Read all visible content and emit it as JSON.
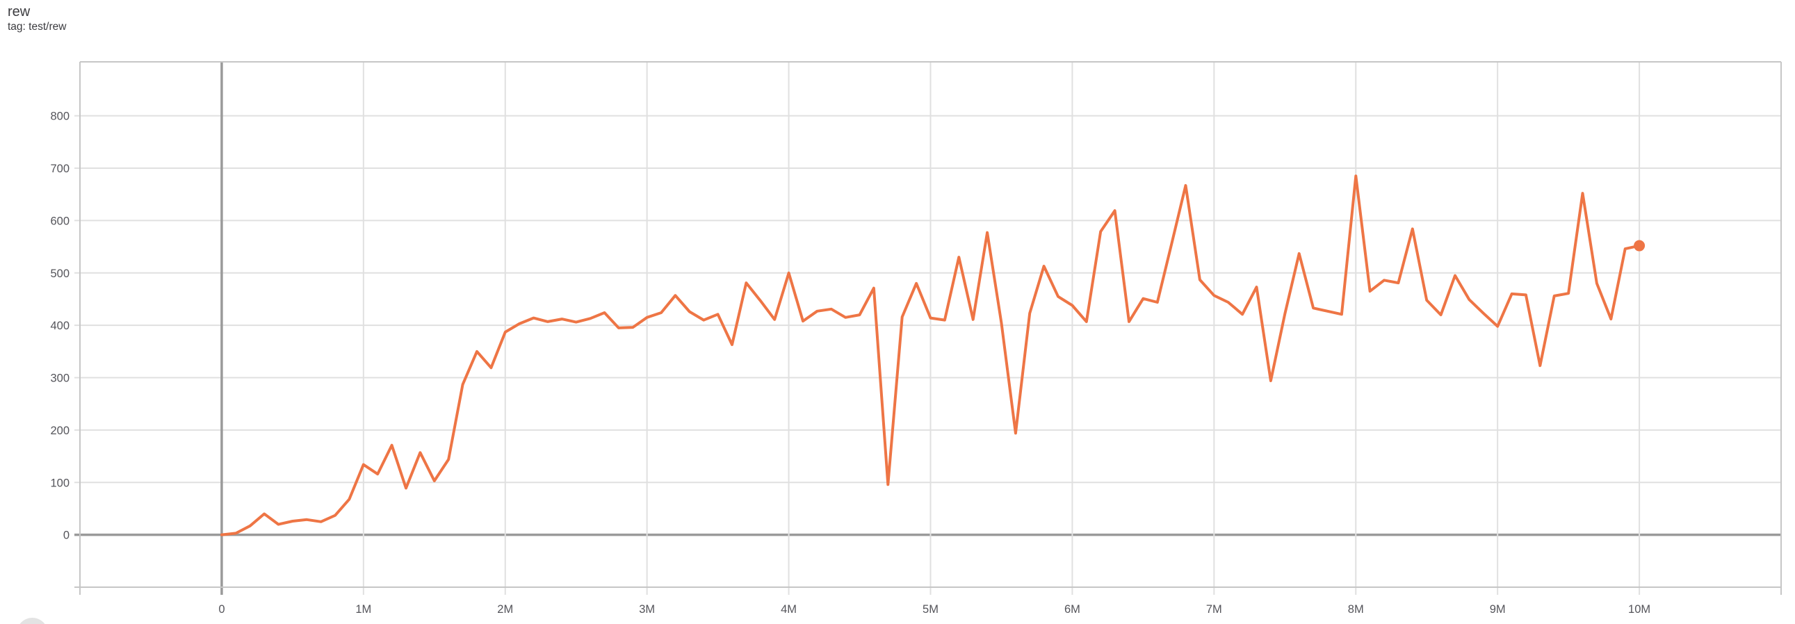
{
  "chart_card": {
    "title": "rew",
    "subtitle": "tag: test/rew"
  },
  "colors": {
    "series": "#ee7545",
    "gridline": "#e0e0e0",
    "plot_border": "#c6c6c6",
    "zero_axis": "#9a9a9a",
    "tick_label": "#54545a",
    "title_text": "#3b3b3f",
    "corner_circle": "#e3e3e3",
    "background": "#ffffff"
  },
  "chart_data": {
    "type": "line",
    "title": "rew",
    "subtitle": "tag: test/rew",
    "xlabel": "",
    "ylabel": "",
    "grid": true,
    "legend_position": "none",
    "x_unit": "steps",
    "x_range": [
      -1000000,
      11000000
    ],
    "y_range": [
      -100,
      903
    ],
    "x_ticks": [
      {
        "value": 0,
        "label": "0"
      },
      {
        "value": 1000000,
        "label": "1M"
      },
      {
        "value": 2000000,
        "label": "2M"
      },
      {
        "value": 3000000,
        "label": "3M"
      },
      {
        "value": 4000000,
        "label": "4M"
      },
      {
        "value": 5000000,
        "label": "5M"
      },
      {
        "value": 6000000,
        "label": "6M"
      },
      {
        "value": 7000000,
        "label": "7M"
      },
      {
        "value": 8000000,
        "label": "8M"
      },
      {
        "value": 9000000,
        "label": "9M"
      },
      {
        "value": 10000000,
        "label": "10M"
      }
    ],
    "y_ticks": [
      {
        "value": 0,
        "label": "0"
      },
      {
        "value": 100,
        "label": "100"
      },
      {
        "value": 200,
        "label": "200"
      },
      {
        "value": 300,
        "label": "300"
      },
      {
        "value": 400,
        "label": "400"
      },
      {
        "value": 500,
        "label": "500"
      },
      {
        "value": 600,
        "label": "600"
      },
      {
        "value": 700,
        "label": "700"
      },
      {
        "value": 800,
        "label": "800"
      }
    ],
    "series": [
      {
        "name": "test/rew",
        "color": "#ee7545",
        "endpoint_marker": true,
        "x_start": 0,
        "x_step_interval": 100000,
        "values": [
          0,
          3,
          17,
          40,
          20,
          26,
          29,
          25,
          37,
          68,
          134,
          116,
          171,
          89,
          157,
          103,
          144,
          287,
          350,
          319,
          387,
          403,
          414,
          407,
          412,
          406,
          413,
          424,
          395,
          396,
          415,
          424,
          457,
          426,
          410,
          421,
          363,
          481,
          447,
          411,
          500,
          408,
          427,
          431,
          415,
          420,
          471,
          96,
          416,
          480,
          414,
          410,
          530,
          411,
          577,
          404,
          194,
          423,
          513,
          455,
          438,
          407,
          579,
          619,
          407,
          451,
          444,
          555,
          667,
          487,
          457,
          444,
          421,
          473,
          294,
          422,
          537,
          433,
          427,
          421,
          685,
          465,
          486,
          481,
          584,
          448,
          420,
          495,
          449,
          423,
          398,
          460,
          458,
          323,
          456,
          461,
          652,
          480,
          412,
          546,
          552
        ]
      }
    ]
  }
}
